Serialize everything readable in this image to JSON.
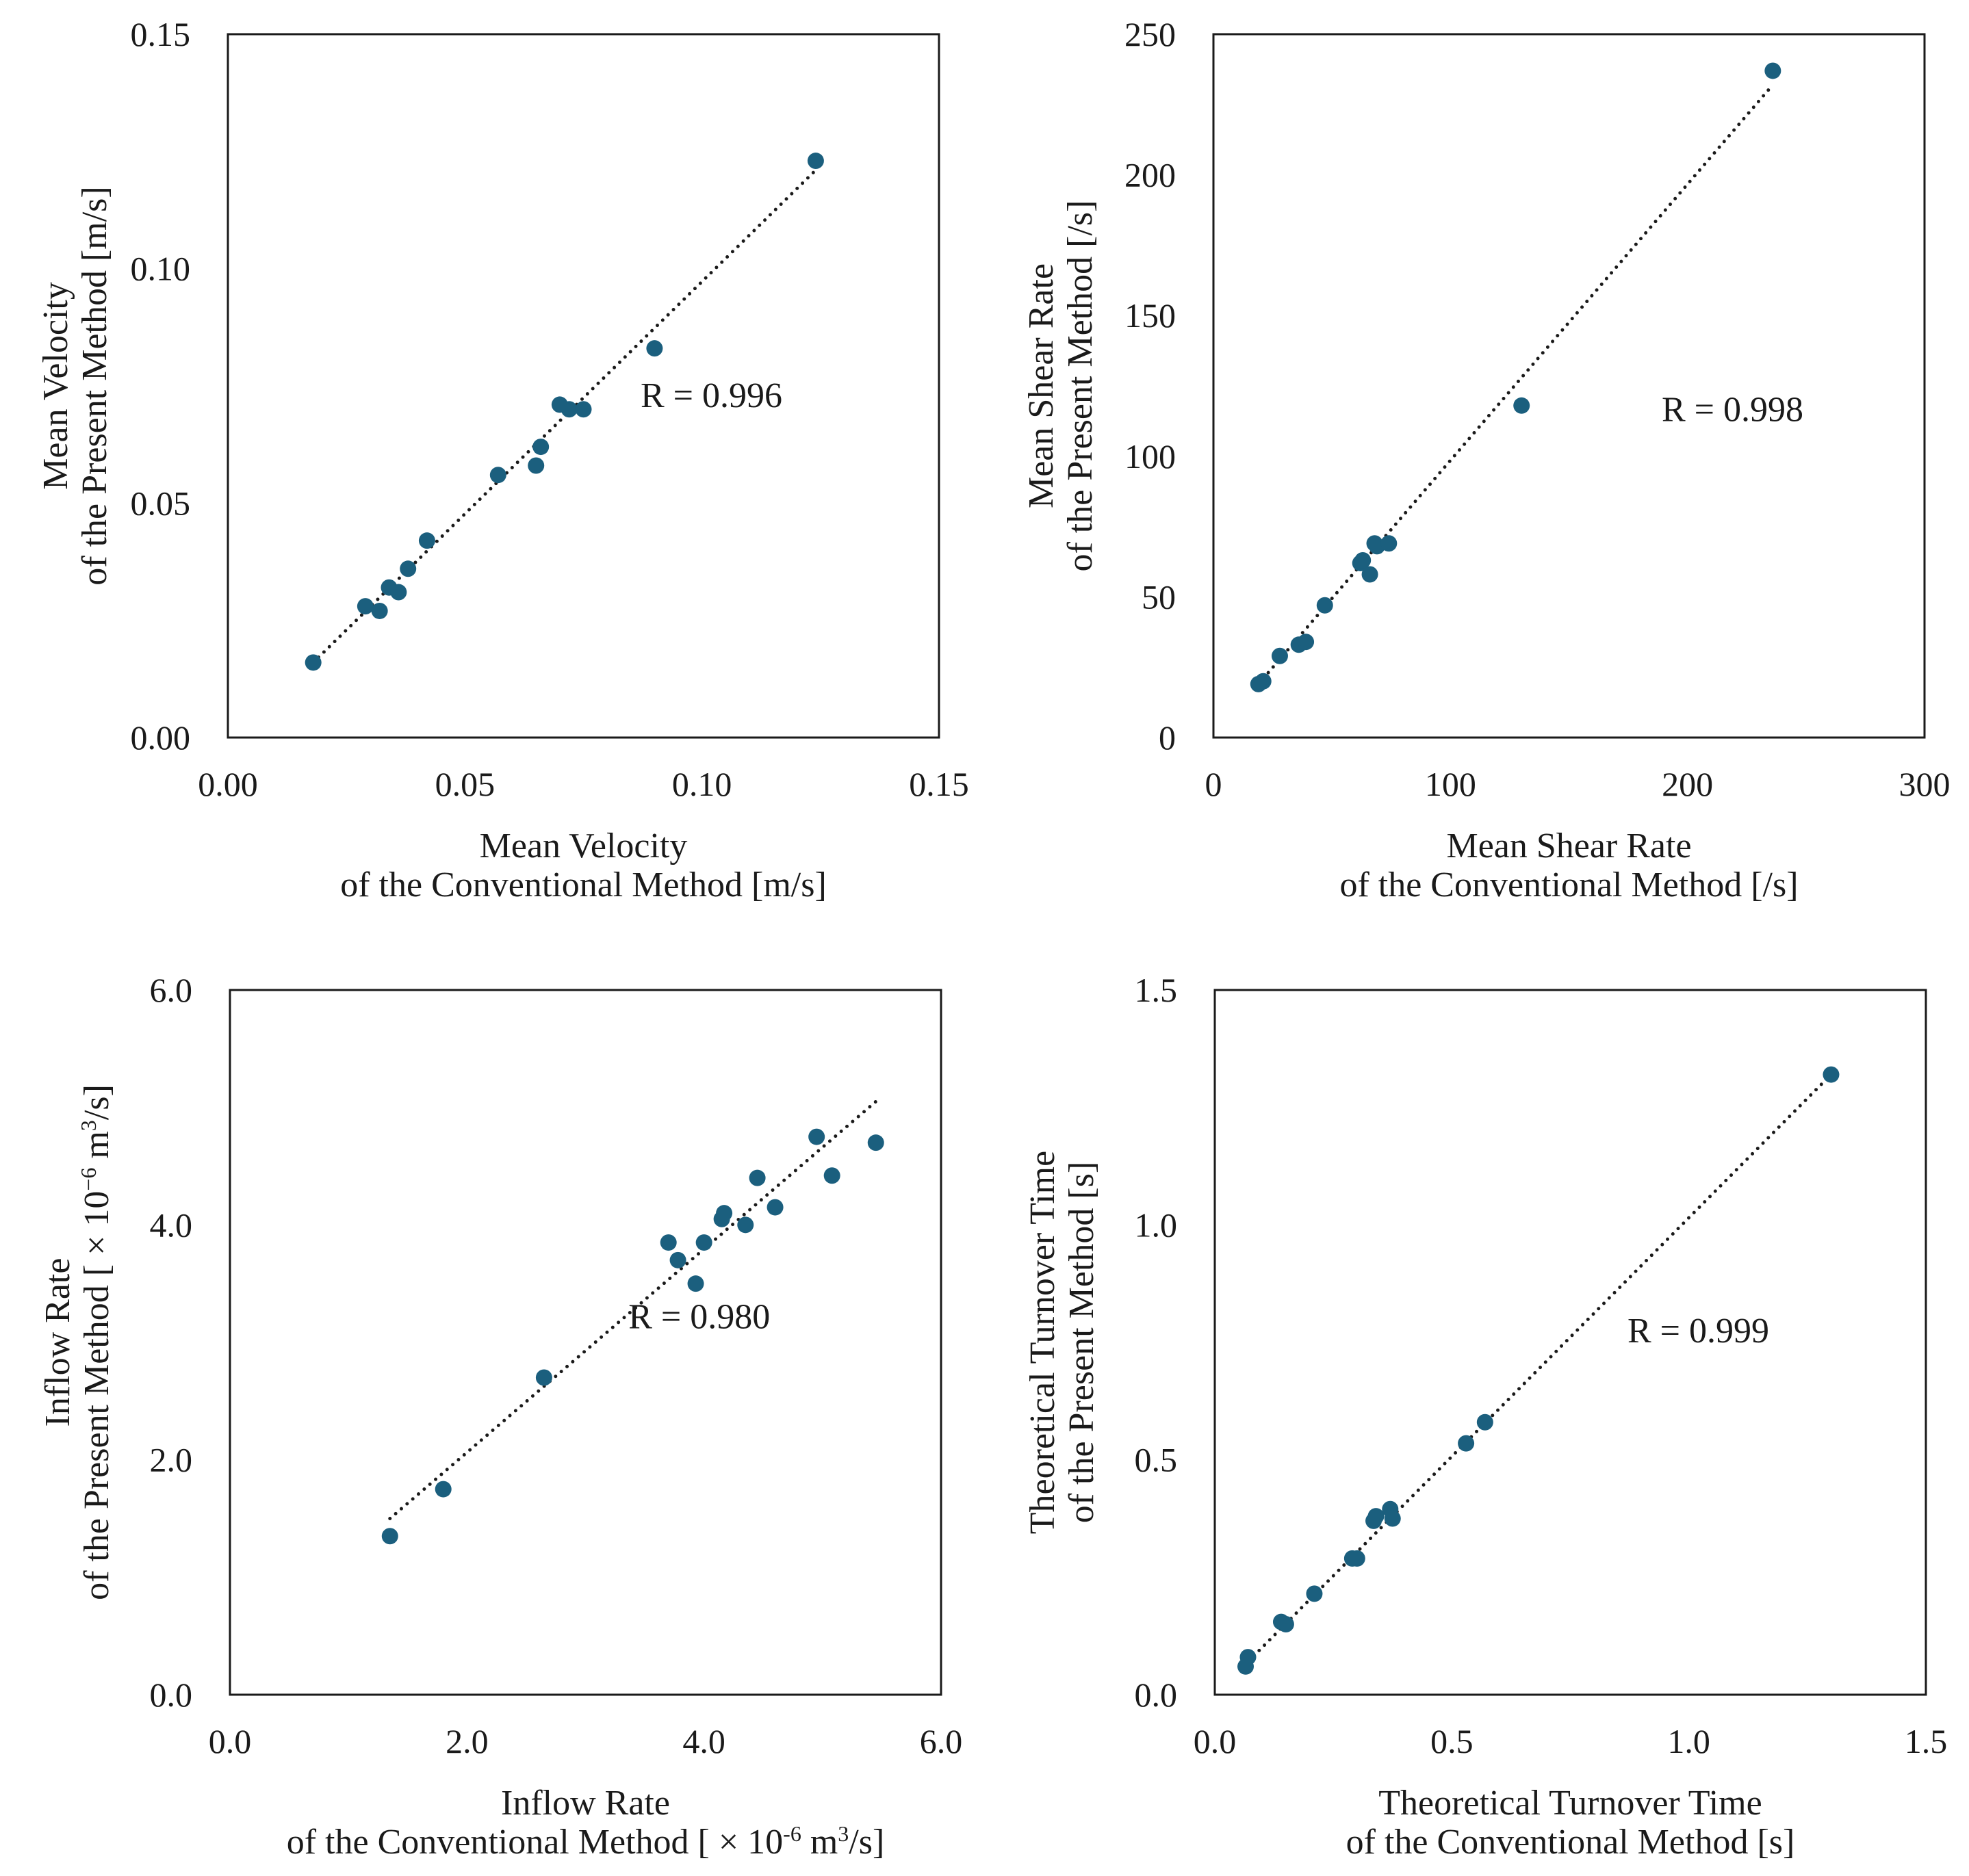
{
  "colors": {
    "point": "#1b5f7e",
    "line": "#1a1a1a",
    "frame": "#1a1a1a"
  },
  "chart_data": [
    {
      "type": "scatter",
      "id": "velocity",
      "xlabel": [
        "Mean Velocity",
        "of the Conventional Method [m/s]"
      ],
      "ylabel": [
        "Mean Velocity",
        "of the Present Method [m/s]"
      ],
      "xlim": [
        0,
        0.15
      ],
      "ylim": [
        0,
        0.15
      ],
      "xticks": [
        0,
        0.05,
        0.1,
        0.15
      ],
      "yticks": [
        0,
        0.05,
        0.1,
        0.15
      ],
      "xtick_labels": [
        "0.00",
        "0.05",
        "0.10",
        "0.15"
      ],
      "ytick_labels": [
        "0.00",
        "0.05",
        "0.10",
        "0.15"
      ],
      "annotation": "R = 0.996",
      "trendline": [
        [
          0.018,
          0.016
        ],
        [
          0.124,
          0.121
        ]
      ],
      "points": [
        [
          0.018,
          0.016
        ],
        [
          0.029,
          0.028
        ],
        [
          0.032,
          0.027
        ],
        [
          0.034,
          0.032
        ],
        [
          0.036,
          0.031
        ],
        [
          0.038,
          0.036
        ],
        [
          0.042,
          0.042
        ],
        [
          0.057,
          0.056
        ],
        [
          0.065,
          0.058
        ],
        [
          0.066,
          0.062
        ],
        [
          0.07,
          0.071
        ],
        [
          0.072,
          0.07
        ],
        [
          0.075,
          0.07
        ],
        [
          0.09,
          0.083
        ],
        [
          0.124,
          0.123
        ]
      ]
    },
    {
      "type": "scatter",
      "id": "shear",
      "xlabel": [
        "Mean Shear Rate",
        "of the Conventional Method [/s]"
      ],
      "ylabel": [
        "Mean Shear Rate",
        "of the Present Method [/s]"
      ],
      "xlim": [
        0,
        300
      ],
      "ylim": [
        0,
        250
      ],
      "xticks": [
        0,
        100,
        200,
        300
      ],
      "yticks": [
        0,
        50,
        100,
        150,
        200,
        250
      ],
      "xtick_labels": [
        "0",
        "100",
        "200",
        "300"
      ],
      "ytick_labels": [
        "0",
        "50",
        "100",
        "150",
        "200",
        "250"
      ],
      "annotation": "R = 0.998",
      "trendline": [
        [
          19,
          19
        ],
        [
          236,
          232
        ]
      ],
      "points": [
        [
          19,
          19
        ],
        [
          21,
          20
        ],
        [
          28,
          29
        ],
        [
          36,
          33
        ],
        [
          39,
          34
        ],
        [
          47,
          47
        ],
        [
          62,
          62
        ],
        [
          63,
          63
        ],
        [
          66,
          58
        ],
        [
          68,
          69
        ],
        [
          69,
          68
        ],
        [
          74,
          69
        ],
        [
          130,
          118
        ],
        [
          236,
          237
        ]
      ]
    },
    {
      "type": "scatter",
      "id": "inflow",
      "xlabel": [
        "Inflow Rate",
        "of the Conventional Method [ × 10",
        "-6",
        " m",
        "3",
        "/s]"
      ],
      "ylabel": [
        "Inflow Rate",
        "of the Present Method [ × 10",
        "−6",
        " m",
        "3",
        "/s]"
      ],
      "xlim": [
        0,
        6
      ],
      "ylim": [
        0,
        6
      ],
      "xticks": [
        0,
        2,
        4,
        6
      ],
      "yticks": [
        0,
        2,
        4,
        6
      ],
      "xtick_labels": [
        "0.0",
        "2.0",
        "4.0",
        "6.0"
      ],
      "ytick_labels": [
        "0.0",
        "2.0",
        "4.0",
        "6.0"
      ],
      "annotation": "R = 0.980",
      "trendline": [
        [
          1.35,
          1.5
        ],
        [
          5.45,
          5.05
        ]
      ],
      "points": [
        [
          1.35,
          1.35
        ],
        [
          1.8,
          1.75
        ],
        [
          2.65,
          2.7
        ],
        [
          3.7,
          3.85
        ],
        [
          3.78,
          3.7
        ],
        [
          3.93,
          3.5
        ],
        [
          4.0,
          3.85
        ],
        [
          4.15,
          4.05
        ],
        [
          4.17,
          4.1
        ],
        [
          4.35,
          4.0
        ],
        [
          4.45,
          4.4
        ],
        [
          4.6,
          4.15
        ],
        [
          4.95,
          4.75
        ],
        [
          5.08,
          4.42
        ],
        [
          5.45,
          4.7
        ]
      ]
    },
    {
      "type": "scatter",
      "id": "turnover",
      "xlabel": [
        "Theoretical Turnover Time",
        "of the Conventional Method [s]"
      ],
      "ylabel": [
        "Theoretical Turnover Time",
        "of the Present Method [s]"
      ],
      "xlim": [
        0,
        1.5
      ],
      "ylim": [
        0,
        1.5
      ],
      "xticks": [
        0,
        0.5,
        1.0,
        1.5
      ],
      "yticks": [
        0,
        0.5,
        1.0,
        1.5
      ],
      "xtick_labels": [
        "0.0",
        "0.5",
        "1.0",
        "1.5"
      ],
      "ytick_labels": [
        "0.0",
        "0.5",
        "1.0",
        "1.5"
      ],
      "annotation": "R = 0.999",
      "trendline": [
        [
          0.06,
          0.06
        ],
        [
          1.3,
          1.32
        ]
      ],
      "points": [
        [
          0.065,
          0.06
        ],
        [
          0.07,
          0.08
        ],
        [
          0.14,
          0.155
        ],
        [
          0.15,
          0.15
        ],
        [
          0.21,
          0.215
        ],
        [
          0.29,
          0.29
        ],
        [
          0.3,
          0.29
        ],
        [
          0.335,
          0.37
        ],
        [
          0.34,
          0.38
        ],
        [
          0.37,
          0.395
        ],
        [
          0.375,
          0.375
        ],
        [
          0.53,
          0.535
        ],
        [
          0.57,
          0.58
        ],
        [
          1.3,
          1.32
        ]
      ]
    }
  ]
}
